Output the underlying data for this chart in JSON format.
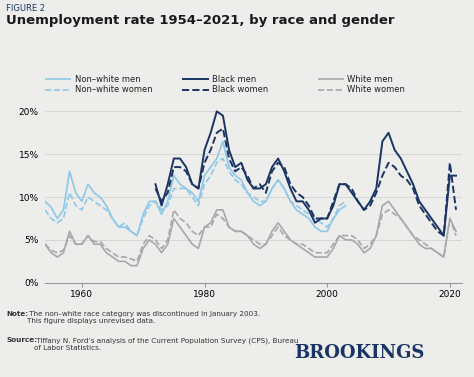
{
  "figure_label": "FIGURE 2",
  "title": "Unemployment rate 1954–2021, by race and gender",
  "background_color": "#ededeb",
  "note_bold": "Note:",
  "note_rest": " The non–white race category was discontinued in January 2003.\nThis figure displays unrevised data.",
  "source_bold": "Source:",
  "source_rest": " Tiffany N. Ford’s analysis of the Current Population Survey (CPS), Bureau\nof Labor Statistics.",
  "brookings_text": "BROOKINGS",
  "yticks": [
    0,
    5,
    10,
    15,
    20
  ],
  "xticks": [
    1960,
    1980,
    2000,
    2020
  ],
  "series": {
    "nonwhite_men": {
      "label": "Non–white men",
      "color": "#8ec8e8",
      "linestyle": "solid",
      "linewidth": 1.2,
      "years": [
        1954,
        1955,
        1956,
        1957,
        1958,
        1959,
        1960,
        1961,
        1962,
        1963,
        1964,
        1965,
        1966,
        1967,
        1968,
        1969,
        1970,
        1971,
        1972,
        1973,
        1974,
        1975,
        1976,
        1977,
        1978,
        1979,
        1980,
        1981,
        1982,
        1983,
        1984,
        1985,
        1986,
        1987,
        1988,
        1989,
        1990,
        1991,
        1992,
        1993,
        1994,
        1995,
        1996,
        1997,
        1998,
        1999,
        2000,
        2001,
        2002,
        2003
      ],
      "values": [
        9.5,
        8.8,
        7.5,
        8.5,
        13.0,
        10.5,
        9.5,
        11.5,
        10.5,
        10.0,
        9.0,
        7.5,
        6.5,
        6.5,
        6.0,
        5.5,
        8.0,
        9.5,
        9.5,
        8.0,
        9.5,
        12.5,
        11.5,
        11.0,
        10.5,
        9.5,
        12.5,
        13.5,
        14.5,
        16.5,
        13.5,
        12.5,
        12.0,
        10.5,
        9.5,
        9.0,
        9.5,
        11.0,
        12.0,
        11.0,
        9.5,
        8.5,
        8.0,
        7.5,
        6.5,
        6.0,
        6.0,
        7.5,
        8.5,
        9.0
      ]
    },
    "nonwhite_women": {
      "label": "Non–white women",
      "color": "#8ec8e8",
      "linestyle": "dashed",
      "linewidth": 1.2,
      "years": [
        1954,
        1955,
        1956,
        1957,
        1958,
        1959,
        1960,
        1961,
        1962,
        1963,
        1964,
        1965,
        1966,
        1967,
        1968,
        1969,
        1970,
        1971,
        1972,
        1973,
        1974,
        1975,
        1976,
        1977,
        1978,
        1979,
        1980,
        1981,
        1982,
        1983,
        1984,
        1985,
        1986,
        1987,
        1988,
        1989,
        1990,
        1991,
        1992,
        1993,
        1994,
        1995,
        1996,
        1997,
        1998,
        1999,
        2000,
        2001,
        2002,
        2003
      ],
      "values": [
        8.5,
        7.5,
        7.0,
        7.5,
        10.5,
        9.0,
        8.5,
        10.0,
        9.5,
        9.0,
        8.5,
        7.5,
        6.5,
        7.0,
        6.0,
        5.5,
        7.5,
        9.0,
        9.5,
        8.5,
        9.0,
        11.0,
        11.0,
        11.0,
        10.0,
        9.0,
        11.5,
        12.5,
        14.0,
        14.5,
        13.0,
        12.0,
        11.5,
        10.5,
        10.0,
        9.5,
        9.5,
        11.0,
        12.0,
        11.0,
        9.5,
        9.0,
        8.5,
        8.0,
        7.5,
        7.0,
        6.5,
        7.5,
        9.0,
        9.5
      ]
    },
    "black_men": {
      "label": "Black men",
      "color": "#1a3463",
      "linestyle": "solid",
      "linewidth": 1.4,
      "years": [
        1972,
        1973,
        1974,
        1975,
        1976,
        1977,
        1978,
        1979,
        1980,
        1981,
        1982,
        1983,
        1984,
        1985,
        1986,
        1987,
        1988,
        1989,
        1990,
        1991,
        1992,
        1993,
        1994,
        1995,
        1996,
        1997,
        1998,
        1999,
        2000,
        2001,
        2002,
        2003,
        2004,
        2005,
        2006,
        2007,
        2008,
        2009,
        2010,
        2011,
        2012,
        2013,
        2014,
        2015,
        2016,
        2017,
        2018,
        2019,
        2020,
        2021
      ],
      "values": [
        11.5,
        9.0,
        11.5,
        14.5,
        14.5,
        13.5,
        11.5,
        11.0,
        15.5,
        17.5,
        20.0,
        19.5,
        15.5,
        13.5,
        14.0,
        12.0,
        11.0,
        11.0,
        11.5,
        13.5,
        14.5,
        13.0,
        11.0,
        9.5,
        9.5,
        8.5,
        7.0,
        7.5,
        7.5,
        9.0,
        11.5,
        11.5,
        10.5,
        9.5,
        8.5,
        9.5,
        11.0,
        16.5,
        17.5,
        15.5,
        14.5,
        13.0,
        11.5,
        9.5,
        8.5,
        7.5,
        6.5,
        5.5,
        12.5,
        12.5
      ]
    },
    "black_women": {
      "label": "Black women",
      "color": "#1a3463",
      "linestyle": "dashed",
      "linewidth": 1.4,
      "years": [
        1972,
        1973,
        1974,
        1975,
        1976,
        1977,
        1978,
        1979,
        1980,
        1981,
        1982,
        1983,
        1984,
        1985,
        1986,
        1987,
        1988,
        1989,
        1990,
        1991,
        1992,
        1993,
        1994,
        1995,
        1996,
        1997,
        1998,
        1999,
        2000,
        2001,
        2002,
        2003,
        2004,
        2005,
        2006,
        2007,
        2008,
        2009,
        2010,
        2011,
        2012,
        2013,
        2014,
        2015,
        2016,
        2017,
        2018,
        2019,
        2020,
        2021
      ],
      "values": [
        11.0,
        9.5,
        10.5,
        13.5,
        13.5,
        13.0,
        11.5,
        11.0,
        14.0,
        15.5,
        17.5,
        18.0,
        14.5,
        13.0,
        13.5,
        12.5,
        11.0,
        11.5,
        10.5,
        13.0,
        14.0,
        13.5,
        11.5,
        10.5,
        10.0,
        9.0,
        7.5,
        7.5,
        7.5,
        9.5,
        11.5,
        11.5,
        11.0,
        9.5,
        8.5,
        9.0,
        10.5,
        12.5,
        14.0,
        13.5,
        12.5,
        12.0,
        11.0,
        9.0,
        8.0,
        7.0,
        6.0,
        5.5,
        14.0,
        8.5
      ]
    },
    "white_men": {
      "label": "White men",
      "color": "#a8a8a8",
      "linestyle": "solid",
      "linewidth": 1.2,
      "years": [
        1954,
        1955,
        1956,
        1957,
        1958,
        1959,
        1960,
        1961,
        1962,
        1963,
        1964,
        1965,
        1966,
        1967,
        1968,
        1969,
        1970,
        1971,
        1972,
        1973,
        1974,
        1975,
        1976,
        1977,
        1978,
        1979,
        1980,
        1981,
        1982,
        1983,
        1984,
        1985,
        1986,
        1987,
        1988,
        1989,
        1990,
        1991,
        1992,
        1993,
        1994,
        1995,
        1996,
        1997,
        1998,
        1999,
        2000,
        2001,
        2002,
        2003,
        2004,
        2005,
        2006,
        2007,
        2008,
        2009,
        2010,
        2011,
        2012,
        2013,
        2014,
        2015,
        2016,
        2017,
        2018,
        2019,
        2020,
        2021
      ],
      "values": [
        4.5,
        3.5,
        3.0,
        3.5,
        6.0,
        4.5,
        4.5,
        5.5,
        4.5,
        4.5,
        3.5,
        3.0,
        2.5,
        2.5,
        2.0,
        2.0,
        4.0,
        5.0,
        4.5,
        3.5,
        4.5,
        7.5,
        6.5,
        5.5,
        4.5,
        4.0,
        6.5,
        7.0,
        8.5,
        8.5,
        6.5,
        6.0,
        6.0,
        5.5,
        4.5,
        4.0,
        4.5,
        6.0,
        7.0,
        6.0,
        5.0,
        4.5,
        4.0,
        3.5,
        3.0,
        3.0,
        3.0,
        4.0,
        5.5,
        5.0,
        5.0,
        4.5,
        3.5,
        4.0,
        5.5,
        9.0,
        9.5,
        8.5,
        7.5,
        6.5,
        5.5,
        4.5,
        4.0,
        4.0,
        3.5,
        3.0,
        7.5,
        6.0
      ]
    },
    "white_women": {
      "label": "White women",
      "color": "#a8a8a8",
      "linestyle": "dashed",
      "linewidth": 1.2,
      "years": [
        1954,
        1955,
        1956,
        1957,
        1958,
        1959,
        1960,
        1961,
        1962,
        1963,
        1964,
        1965,
        1966,
        1967,
        1968,
        1969,
        1970,
        1971,
        1972,
        1973,
        1974,
        1975,
        1976,
        1977,
        1978,
        1979,
        1980,
        1981,
        1982,
        1983,
        1984,
        1985,
        1986,
        1987,
        1988,
        1989,
        1990,
        1991,
        1992,
        1993,
        1994,
        1995,
        1996,
        1997,
        1998,
        1999,
        2000,
        2001,
        2002,
        2003,
        2004,
        2005,
        2006,
        2007,
        2008,
        2009,
        2010,
        2011,
        2012,
        2013,
        2014,
        2015,
        2016,
        2017,
        2018,
        2019,
        2020,
        2021
      ],
      "values": [
        4.5,
        3.8,
        3.5,
        3.8,
        5.5,
        4.5,
        4.5,
        5.5,
        4.8,
        4.8,
        4.0,
        3.5,
        3.0,
        3.0,
        2.8,
        2.5,
        4.5,
        5.5,
        5.0,
        4.0,
        5.0,
        8.5,
        7.5,
        7.0,
        6.0,
        5.5,
        6.5,
        6.5,
        8.0,
        7.5,
        6.5,
        6.0,
        6.0,
        5.5,
        5.0,
        4.5,
        4.5,
        5.5,
        6.5,
        5.5,
        5.0,
        4.5,
        4.5,
        4.0,
        3.5,
        3.5,
        3.5,
        4.5,
        5.5,
        5.5,
        5.5,
        5.0,
        4.0,
        4.5,
        5.5,
        8.0,
        8.5,
        8.0,
        7.5,
        6.5,
        5.5,
        5.0,
        4.5,
        4.0,
        3.5,
        3.0,
        7.5,
        5.5
      ]
    }
  }
}
